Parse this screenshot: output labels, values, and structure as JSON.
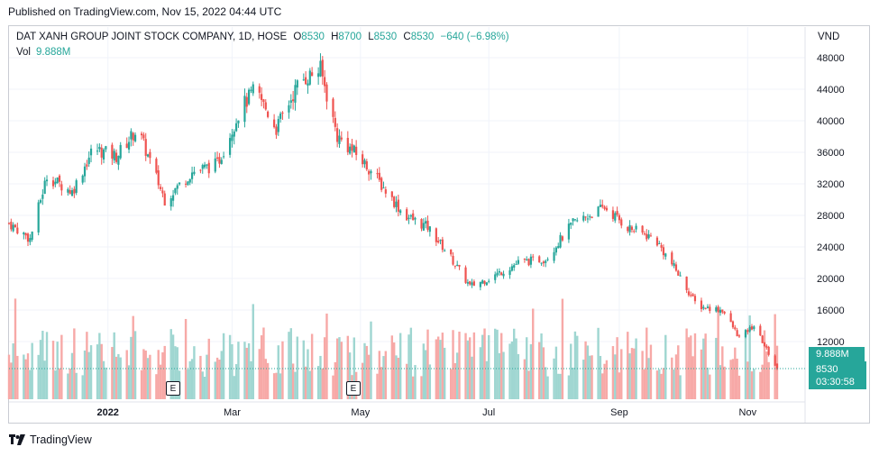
{
  "published": "Published on TradingView.com, Nov 15, 2022 04:44 UTC",
  "legend": {
    "title": "DAT XANH GROUP JOINT STOCK COMPANY, 1D, HOSE",
    "o_key": "O",
    "o_val": "8530",
    "h_key": "H",
    "h_val": "8700",
    "l_key": "L",
    "l_val": "8530",
    "c_key": "C",
    "c_val": "8530",
    "change": "−640 (−6.98%)",
    "vol_key": "Vol",
    "vol_val": "9.888M"
  },
  "currency": "VND",
  "badges": {
    "vol": "9.888M",
    "price": "8530",
    "countdown": "03:30:58"
  },
  "event_marker": "E",
  "footer": {
    "brand": "TradingView",
    "logo_icon": "tradingview-logo-icon"
  },
  "colors": {
    "up": "#26a69a",
    "down": "#ef5350",
    "vol_up": "#9fd6d1",
    "vol_down": "#f7a9a7"
  },
  "chart_data": {
    "type": "candlestick",
    "symbol": "DAT XANH GROUP JOINT STOCK COMPANY",
    "interval": "1D",
    "exchange": "HOSE",
    "currency": "VND",
    "y_ticks": [
      12000,
      16000,
      20000,
      24000,
      28000,
      32000,
      36000,
      40000,
      44000,
      48000
    ],
    "y_tick_labels": [
      "12000",
      "16000",
      "20000",
      "24000",
      "28000",
      "32000",
      "36000",
      "40000",
      "44000",
      "48000"
    ],
    "ylim": [
      8000,
      49000
    ],
    "x_tick_labels": [
      "2022",
      "Mar",
      "May",
      "Jul",
      "Sep",
      "Nov"
    ],
    "x_tick_dates": [
      "2022-01-01",
      "2022-03-01",
      "2022-05-01",
      "2022-07-01",
      "2022-09-01",
      "2022-11-01"
    ],
    "xlim": [
      "2021-11-15",
      "2022-11-15"
    ],
    "close_path": [
      {
        "date": "2021-11-15",
        "close": 27000
      },
      {
        "date": "2021-11-25",
        "close": 25000
      },
      {
        "date": "2021-12-03",
        "close": 33000
      },
      {
        "date": "2021-12-15",
        "close": 31000
      },
      {
        "date": "2021-12-25",
        "close": 36500
      },
      {
        "date": "2022-01-05",
        "close": 35500
      },
      {
        "date": "2022-01-15",
        "close": 39000
      },
      {
        "date": "2022-01-28",
        "close": 30000
      },
      {
        "date": "2022-02-10",
        "close": 33500
      },
      {
        "date": "2022-02-22",
        "close": 34500
      },
      {
        "date": "2022-03-05",
        "close": 41500
      },
      {
        "date": "2022-03-12",
        "close": 44000
      },
      {
        "date": "2022-03-22",
        "close": 39000
      },
      {
        "date": "2022-04-02",
        "close": 45000
      },
      {
        "date": "2022-04-12",
        "close": 46500
      },
      {
        "date": "2022-04-20",
        "close": 38000
      },
      {
        "date": "2022-04-28",
        "close": 36000
      },
      {
        "date": "2022-05-05",
        "close": 34000
      },
      {
        "date": "2022-05-12",
        "close": 31500
      },
      {
        "date": "2022-05-22",
        "close": 28000
      },
      {
        "date": "2022-06-02",
        "close": 26500
      },
      {
        "date": "2022-06-12",
        "close": 23000
      },
      {
        "date": "2022-06-22",
        "close": 19000
      },
      {
        "date": "2022-07-01",
        "close": 20000
      },
      {
        "date": "2022-07-15",
        "close": 22000
      },
      {
        "date": "2022-07-28",
        "close": 22500
      },
      {
        "date": "2022-08-10",
        "close": 27000
      },
      {
        "date": "2022-08-25",
        "close": 29000
      },
      {
        "date": "2022-09-05",
        "close": 26500
      },
      {
        "date": "2022-09-18",
        "close": 25000
      },
      {
        "date": "2022-09-28",
        "close": 21000
      },
      {
        "date": "2022-10-08",
        "close": 16500
      },
      {
        "date": "2022-10-20",
        "close": 16000
      },
      {
        "date": "2022-10-28",
        "close": 12500
      },
      {
        "date": "2022-11-04",
        "close": 14000
      },
      {
        "date": "2022-11-10",
        "close": 11000
      },
      {
        "date": "2022-11-15",
        "close": 8530
      }
    ],
    "last_bar": {
      "open": 8530,
      "high": 8700,
      "low": 8530,
      "close": 8530,
      "change": -640,
      "change_pct": -6.98,
      "volume": "9.888M"
    },
    "volume_label": "9.888M"
  }
}
